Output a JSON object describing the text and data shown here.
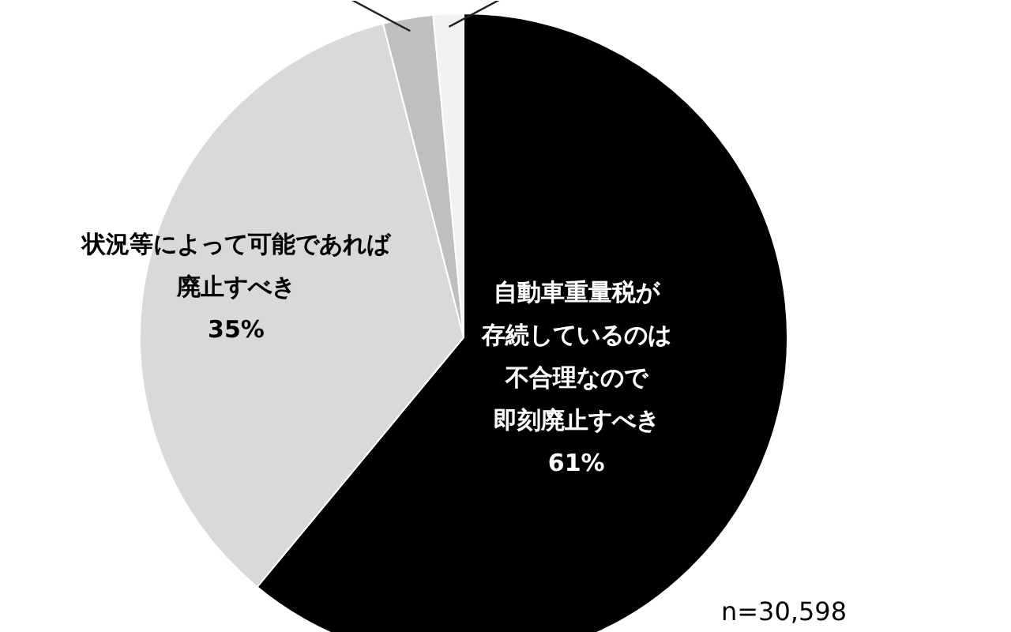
{
  "chart_data": {
    "type": "pie",
    "categories": [
      "自動車重量税が存続しているのは不合理なので即刻廃止すべき",
      "状況等によって可能であれば廃止すべき",
      null,
      null
    ],
    "values": [
      61,
      35,
      2.5,
      1.5
    ],
    "colors": [
      "#000000",
      "#d9d9d9",
      "#bfbfbf",
      "#f2f2f2"
    ],
    "value_labels": [
      "61%",
      "35%",
      null,
      null
    ],
    "annotations": [
      "n=30,598"
    ]
  }
}
